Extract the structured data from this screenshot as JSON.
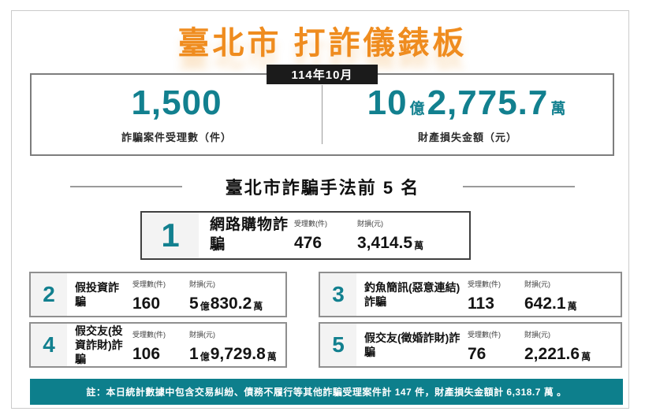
{
  "colors": {
    "title_orange": "#EF8C1F",
    "stat_teal": "#12808F",
    "footer_teal": "#0D7F8C",
    "badge_black": "#1B1B1B"
  },
  "title": "臺北市 打詐儀錶板",
  "summary": {
    "period_badge": "114年10月",
    "cases_value": "1,500",
    "cases_label": "詐騙案件受理數（件）",
    "loss_parts": [
      {
        "num": "10"
      },
      {
        "unit": "億"
      },
      {
        "num": "2,775.7"
      },
      {
        "unit": "萬"
      }
    ],
    "loss_label": "財產損失金額（元）"
  },
  "ranking": {
    "section_title": "臺北市詐騙手法前 5 名",
    "cases_header": "受理數(件)",
    "loss_header": "財損(元)",
    "items": [
      {
        "rank": "1",
        "name": "網路購物詐騙",
        "cases": "476",
        "loss_parts": [
          {
            "num": "3,414.5"
          },
          {
            "unit": "萬"
          }
        ]
      },
      {
        "rank": "2",
        "name": "假投資詐騙",
        "cases": "160",
        "loss_parts": [
          {
            "num": "5"
          },
          {
            "unit": "億"
          },
          {
            "num": "830.2"
          },
          {
            "unit": "萬"
          }
        ]
      },
      {
        "rank": "3",
        "name": "釣魚簡訊(惡意連結)詐騙",
        "cases": "113",
        "loss_parts": [
          {
            "num": "642.1"
          },
          {
            "unit": "萬"
          }
        ]
      },
      {
        "rank": "4",
        "name": "假交友(投資詐財)詐騙",
        "cases": "106",
        "loss_parts": [
          {
            "num": "1"
          },
          {
            "unit": "億"
          },
          {
            "num": "9,729.8"
          },
          {
            "unit": "萬"
          }
        ]
      },
      {
        "rank": "5",
        "name": "假交友(徵婚詐財)詐騙",
        "cases": "76",
        "loss_parts": [
          {
            "num": "2,221.6"
          },
          {
            "unit": "萬"
          }
        ]
      }
    ]
  },
  "footer_note": "註：本日統計數據中包含交易糾紛、債務不履行等其他詐騙受理案件計 147 件，財產損失金額計 6,318.7 萬 。"
}
